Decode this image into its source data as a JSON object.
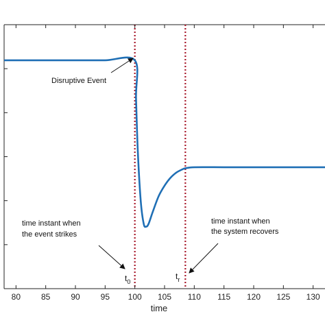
{
  "chart_data": {
    "type": "line",
    "title": "",
    "xlabel": "time",
    "ylabel": "",
    "xlim": [
      78,
      132
    ],
    "ylim": [
      0,
      1
    ],
    "grid": false,
    "x_ticks": [
      80,
      85,
      90,
      95,
      100,
      105,
      110,
      115,
      120,
      125,
      130
    ],
    "y_tick_count": 5,
    "series": [
      {
        "color": "#1f6fb5",
        "x": [
          78,
          85,
          90,
          95,
          100,
          100.2,
          100.5,
          101,
          101.5,
          101.9,
          102.3,
          103,
          104,
          105,
          106,
          107,
          108,
          108.5,
          110,
          115,
          120,
          125,
          130,
          132
        ],
        "y": [
          0.865,
          0.865,
          0.865,
          0.865,
          0.865,
          0.72,
          0.52,
          0.33,
          0.245,
          0.235,
          0.245,
          0.29,
          0.35,
          0.39,
          0.42,
          0.44,
          0.452,
          0.456,
          0.46,
          0.46,
          0.46,
          0.46,
          0.46,
          0.46
        ]
      }
    ],
    "vlines": [
      {
        "x": 100,
        "color": "#a8182a",
        "style": "dotted"
      },
      {
        "x": 108.5,
        "color": "#a8182a",
        "style": "dotted"
      }
    ],
    "annotations": {
      "disruptive": "Disruptive  Event",
      "strike_line1": "time instant when",
      "strike_line2": "the event strikes",
      "recover_line1": "time instant when",
      "recover_line2": "the system recovers",
      "t0_main": "t",
      "t0_sub": "0",
      "tr_main": "t",
      "tr_sub": "r"
    }
  }
}
